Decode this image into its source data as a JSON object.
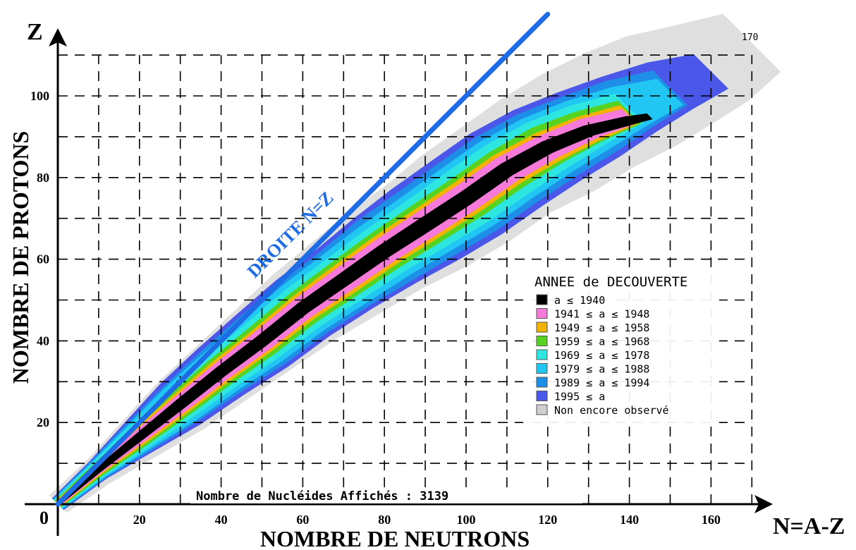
{
  "chart_data": {
    "type": "heatmap",
    "title": "",
    "xlabel": "NOMBRE DE NEUTRONS",
    "ylabel": "NOMBRE DE PROTONS",
    "x_axis_name": "N=A-Z",
    "y_axis_name": "Z",
    "origin_label": "0",
    "xlim": [
      0,
      170
    ],
    "ylim": [
      0,
      110
    ],
    "x_ticks": [
      20,
      40,
      60,
      80,
      100,
      120,
      140,
      160
    ],
    "y_ticks": [
      20,
      40,
      60,
      80,
      100
    ],
    "grid": true,
    "diagonal": {
      "label": "DROITE N=Z",
      "from": [
        0,
        0
      ],
      "to": [
        120,
        120
      ],
      "color": "#1e6be6"
    },
    "top_corner_label": "170",
    "footer_text": "Nombre de Nucléides Affichés : 3139",
    "nuclide_count": 3139,
    "legend": {
      "title": "ANNEE de DECOUVERTE",
      "placement": "lower-right",
      "entries": [
        {
          "label": "a ≤ 1940",
          "color": "#000000"
        },
        {
          "label": "1941 ≤ a ≤ 1948",
          "color": "#f57ad9"
        },
        {
          "label": "1949 ≤ a ≤ 1958",
          "color": "#f2b400"
        },
        {
          "label": "1959 ≤ a ≤ 1968",
          "color": "#55d320"
        },
        {
          "label": "1969 ≤ a ≤ 1978",
          "color": "#2ee6e0"
        },
        {
          "label": "1979 ≤ a ≤ 1988",
          "color": "#22c6f2"
        },
        {
          "label": "1989 ≤ a ≤ 1994",
          "color": "#1d8fe8"
        },
        {
          "label": "1995 ≤ a",
          "color": "#4a57e8"
        },
        {
          "label": "Non encore observé",
          "color": "#cfcfcf"
        }
      ]
    },
    "bands": [
      {
        "name": "Non encore observé",
        "color": "#d2d2d2",
        "curve": [
          [
            0,
            0
          ],
          [
            10,
            8
          ],
          [
            20,
            16
          ],
          [
            30,
            24
          ],
          [
            40,
            32
          ],
          [
            50,
            40
          ],
          [
            60,
            48
          ],
          [
            70,
            55
          ],
          [
            80,
            62
          ],
          [
            90,
            68
          ],
          [
            100,
            75
          ],
          [
            110,
            82
          ],
          [
            120,
            88
          ],
          [
            130,
            94
          ],
          [
            140,
            99
          ],
          [
            150,
            104
          ],
          [
            160,
            108
          ],
          [
            170,
            113
          ]
        ],
        "halfwidth": [
          3,
          4,
          6,
          8,
          9,
          10,
          11,
          12,
          13,
          14,
          15,
          15,
          16,
          16,
          16,
          15,
          13,
          10
        ]
      },
      {
        "name": "1995 ≤ a",
        "color": "#4a57e8",
        "curve": [
          [
            0,
            0
          ],
          [
            10,
            8.5
          ],
          [
            20,
            16.5
          ],
          [
            30,
            24.5
          ],
          [
            40,
            32.5
          ],
          [
            50,
            40
          ],
          [
            60,
            48
          ],
          [
            70,
            55
          ],
          [
            80,
            62
          ],
          [
            90,
            68.5
          ],
          [
            100,
            75
          ],
          [
            110,
            82
          ],
          [
            120,
            88
          ],
          [
            130,
            93
          ],
          [
            140,
            98
          ],
          [
            150,
            102.5
          ],
          [
            160,
            106
          ]
        ],
        "halfwidth": [
          2,
          3,
          5,
          7,
          8,
          9,
          9.5,
          10,
          11,
          12,
          12.5,
          12.5,
          12,
          11,
          9.5,
          8,
          6
        ]
      },
      {
        "name": "1989 ≤ a ≤ 1994",
        "color": "#1d8fe8",
        "curve": [
          [
            0,
            0
          ],
          [
            10,
            8.5
          ],
          [
            20,
            16.5
          ],
          [
            30,
            24.5
          ],
          [
            40,
            32.5
          ],
          [
            50,
            40
          ],
          [
            60,
            48
          ],
          [
            70,
            55
          ],
          [
            80,
            62
          ],
          [
            90,
            68.5
          ],
          [
            100,
            75
          ],
          [
            110,
            82
          ],
          [
            120,
            88
          ],
          [
            130,
            93
          ],
          [
            140,
            98
          ],
          [
            150,
            102
          ]
        ],
        "halfwidth": [
          1.8,
          2.8,
          4.5,
          6,
          7,
          8,
          8.5,
          9,
          10,
          10.5,
          11,
          11,
          10.5,
          9.5,
          8,
          6
        ]
      },
      {
        "name": "1979 ≤ a ≤ 1988",
        "color": "#22c6f2",
        "curve": [
          [
            0,
            0
          ],
          [
            10,
            8.5
          ],
          [
            20,
            16.5
          ],
          [
            30,
            24.5
          ],
          [
            40,
            32.5
          ],
          [
            50,
            40
          ],
          [
            60,
            48
          ],
          [
            70,
            55
          ],
          [
            80,
            62
          ],
          [
            90,
            68.5
          ],
          [
            100,
            75
          ],
          [
            110,
            82
          ],
          [
            120,
            88
          ],
          [
            130,
            93
          ],
          [
            140,
            97.5
          ],
          [
            150,
            101
          ]
        ],
        "halfwidth": [
          1.6,
          2.5,
          4,
          5.5,
          6.2,
          7,
          7.5,
          8,
          8.5,
          9,
          9.5,
          9.5,
          9,
          8,
          6.5,
          4.5
        ]
      },
      {
        "name": "1969 ≤ a ≤ 1978",
        "color": "#2ee6e0",
        "curve": [
          [
            0,
            0
          ],
          [
            10,
            8.5
          ],
          [
            20,
            16.5
          ],
          [
            30,
            24.5
          ],
          [
            40,
            32.5
          ],
          [
            50,
            40
          ],
          [
            60,
            48
          ],
          [
            70,
            55
          ],
          [
            80,
            62
          ],
          [
            90,
            68.5
          ],
          [
            100,
            75
          ],
          [
            110,
            82
          ],
          [
            120,
            88
          ],
          [
            130,
            93
          ],
          [
            140,
            97
          ]
        ],
        "halfwidth": [
          1.4,
          2.2,
          3.5,
          4.5,
          5.2,
          5.8,
          6.2,
          6.6,
          7,
          7.5,
          8,
          8,
          7.5,
          6.5,
          5
        ]
      },
      {
        "name": "1959 ≤ a ≤ 1968",
        "color": "#55d320",
        "curve": [
          [
            0,
            0
          ],
          [
            10,
            8.5
          ],
          [
            20,
            16.5
          ],
          [
            30,
            24.5
          ],
          [
            40,
            32.5
          ],
          [
            50,
            40
          ],
          [
            60,
            48
          ],
          [
            70,
            55
          ],
          [
            80,
            62
          ],
          [
            90,
            68.5
          ],
          [
            100,
            75
          ],
          [
            110,
            82
          ],
          [
            120,
            88
          ],
          [
            130,
            92.5
          ],
          [
            140,
            96
          ]
        ],
        "halfwidth": [
          1.1,
          1.8,
          2.8,
          3.5,
          4,
          4.5,
          4.8,
          5.2,
          5.5,
          5.8,
          6,
          6,
          5.8,
          5,
          4
        ]
      },
      {
        "name": "1949 ≤ a ≤ 1958",
        "color": "#f2b400",
        "curve": [
          [
            0,
            0
          ],
          [
            10,
            8.5
          ],
          [
            20,
            16.5
          ],
          [
            30,
            24.5
          ],
          [
            40,
            32.5
          ],
          [
            50,
            40
          ],
          [
            60,
            48
          ],
          [
            70,
            55
          ],
          [
            80,
            62
          ],
          [
            90,
            68.5
          ],
          [
            100,
            75
          ],
          [
            110,
            82
          ],
          [
            120,
            87.5
          ],
          [
            130,
            92
          ],
          [
            140,
            95.5
          ]
        ],
        "halfwidth": [
          0.9,
          1.4,
          2.2,
          2.8,
          3.2,
          3.5,
          3.8,
          4.2,
          4.4,
          4.6,
          4.8,
          4.8,
          4.6,
          4,
          3.2
        ]
      },
      {
        "name": "1941 ≤ a ≤ 1948",
        "color": "#f57ad9",
        "curve": [
          [
            0,
            0
          ],
          [
            10,
            8.5
          ],
          [
            20,
            16.5
          ],
          [
            30,
            24.5
          ],
          [
            40,
            32.5
          ],
          [
            50,
            40
          ],
          [
            60,
            48
          ],
          [
            70,
            55
          ],
          [
            80,
            62
          ],
          [
            90,
            68.5
          ],
          [
            100,
            75
          ],
          [
            110,
            82
          ],
          [
            120,
            87.5
          ],
          [
            130,
            92
          ],
          [
            140,
            95
          ]
        ],
        "halfwidth": [
          0.7,
          1.1,
          1.7,
          2.2,
          2.5,
          2.8,
          3,
          3.3,
          3.5,
          3.7,
          3.8,
          3.8,
          3.6,
          3.2,
          2.5
        ]
      },
      {
        "name": "a ≤ 1940",
        "color": "#000000",
        "curve": [
          [
            0,
            0
          ],
          [
            10,
            8.5
          ],
          [
            20,
            16.5
          ],
          [
            30,
            24.5
          ],
          [
            40,
            32.5
          ],
          [
            50,
            40
          ],
          [
            60,
            48
          ],
          [
            70,
            55
          ],
          [
            80,
            62
          ],
          [
            90,
            68.5
          ],
          [
            100,
            75
          ],
          [
            110,
            82
          ],
          [
            120,
            87.5
          ],
          [
            130,
            91.5
          ],
          [
            140,
            94
          ],
          [
            145,
            95
          ]
        ],
        "halfwidth": [
          0.5,
          0.8,
          1.1,
          1.4,
          1.5,
          1.6,
          1.7,
          1.8,
          1.9,
          2,
          2,
          2,
          1.9,
          1.7,
          1.4,
          1
        ]
      }
    ]
  }
}
